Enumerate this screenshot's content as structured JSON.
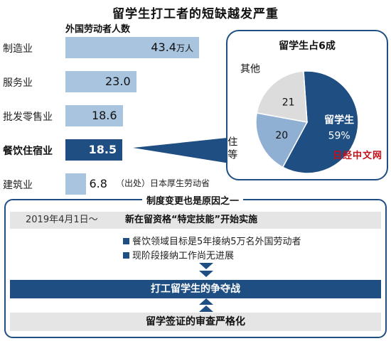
{
  "title": "留学生打工者的短缺越发严重",
  "chart_data": [
    {
      "type": "bar",
      "title": "外国劳动者人数",
      "categories": [
        "制造业",
        "服务业",
        "批发零售业",
        "餐饮住宿业",
        "建筑业"
      ],
      "values": [
        43.4,
        23.0,
        18.6,
        18.5,
        6.8
      ],
      "value_labels": [
        "43.4",
        "23.0",
        "18.6",
        "18.5",
        "6.8"
      ],
      "unit": "万人",
      "highlight": "餐饮住宿业",
      "colors": {
        "bar": "#a9c4df",
        "highlight": "#1f4e83"
      }
    },
    {
      "type": "pie",
      "title": "留学生占6成",
      "slices": [
        {
          "label": "留学生",
          "value": 59,
          "value_label": "59%",
          "color": "#1f4e83"
        },
        {
          "label": "永住\n人员等",
          "value": 20,
          "value_label": "20",
          "color": "#8fb0d3"
        },
        {
          "label": "其他",
          "value": 21,
          "value_label": "21",
          "color": "#dcdcdc"
        }
      ]
    }
  ],
  "source": "（出处）日本厚生劳动省",
  "watermark": "日经中文网",
  "box": {
    "title": "制度变更也是原因之一",
    "date": "2019年4月1日～",
    "headline": "新在留资格“特定技能”开始实施",
    "bullets": [
      "餐饮领域目标是5年接纳5万名外国劳动者",
      "现阶段接纳工作尚无进展"
    ],
    "competition": "打工留学生的争夺战",
    "visa": "留学签证的审查严格化"
  }
}
